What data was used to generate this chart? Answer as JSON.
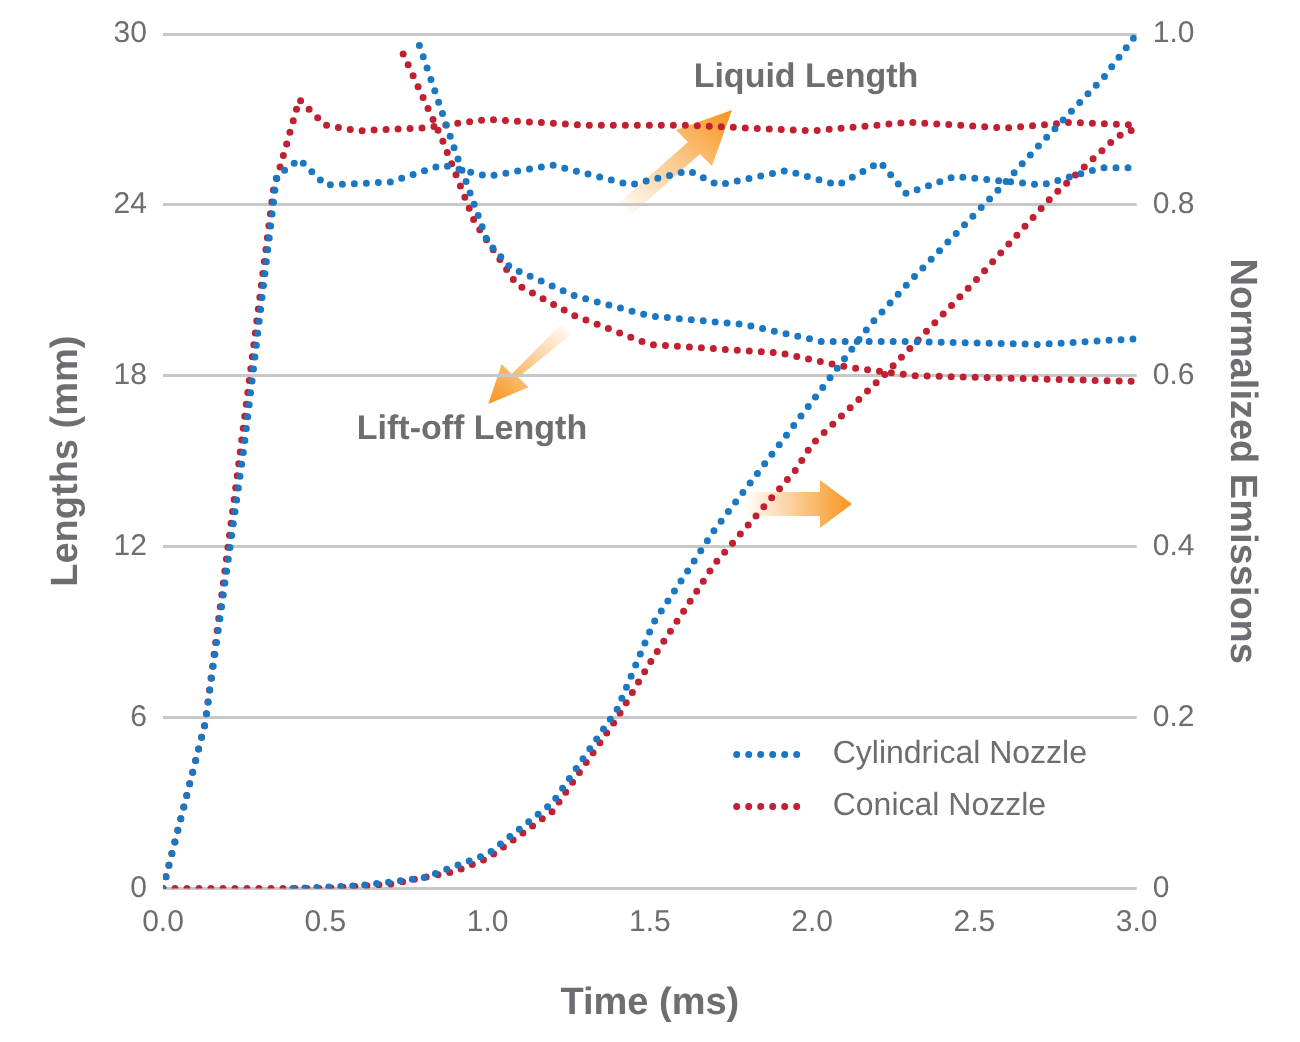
{
  "chart_data": {
    "type": "line",
    "xlabel": "Time (ms)",
    "ylabel": "Lengths (mm)",
    "y2label": "Normalized Emissions",
    "xlim": [
      0,
      3
    ],
    "xticks": [
      {
        "value": 0,
        "label": "0.0"
      },
      0.5,
      {
        "value": 1,
        "label": "1.0"
      },
      1.5,
      {
        "value": 2,
        "label": "2.0"
      },
      2.5,
      {
        "value": 3,
        "label": "3.0"
      }
    ],
    "ylim": [
      0,
      30
    ],
    "yticks": [
      0,
      6,
      12,
      18,
      24,
      30
    ],
    "y2lim": [
      0,
      1
    ],
    "y2ticks": [
      0,
      0.2,
      0.4,
      0.6,
      0.8,
      {
        "value": 1,
        "label": "1.0"
      }
    ],
    "grid": "y",
    "legend": "bottom right",
    "marker": "none",
    "line_style": "dotted",
    "annotations": [
      "Liquid Length",
      "Lift-off Length"
    ],
    "series": [
      {
        "name": "Cylindrical Nozzle",
        "color": "#1a78c2",
        "x": [
          0,
          0.13,
          0.25,
          0.35,
          0.42,
          0.5,
          0.7,
          0.86,
          1.0,
          1.2,
          1.44,
          1.62,
          1.71,
          1.92,
          2.08,
          2.21,
          2.29,
          2.44,
          2.71,
          2.89,
          3.0
        ],
        "values": [
          0,
          5.8,
          15.5,
          25,
          25.6,
          24.7,
          24.8,
          25.4,
          25,
          25.4,
          24.7,
          25.2,
          24.7,
          25.2,
          24.7,
          25.5,
          24.4,
          25,
          24.7,
          25.3,
          25.3
        ]
      },
      {
        "color": "#1a78c2",
        "x": [
          0.79,
          0.9,
          1.0,
          1.07,
          1.27,
          1.5,
          1.79,
          2.03,
          2.3,
          2.7,
          3.0
        ],
        "values": [
          29.6,
          25.9,
          22.7,
          21.8,
          20.8,
          20.1,
          19.8,
          19.2,
          19.2,
          19.1,
          19.3
        ]
      },
      {
        "color": "#1a78c2",
        "axis": "y2",
        "x": [
          0.4,
          0.6,
          0.8,
          1.0,
          1.2,
          1.4,
          1.51,
          1.7,
          1.84,
          1.9,
          2.18,
          2.3,
          2.58,
          2.7,
          2.9,
          3.0
        ],
        "values": [
          0,
          0.003,
          0.012,
          0.04,
          0.1,
          0.21,
          0.31,
          0.42,
          0.49,
          0.52,
          0.66,
          0.71,
          0.82,
          0.87,
          0.95,
          1.0
        ]
      },
      {
        "name": "Conical Nozzle",
        "color": "#c0202f",
        "x": [
          0,
          0.13,
          0.23,
          0.34,
          0.42,
          0.5,
          0.6,
          0.8,
          1.0,
          1.3,
          1.6,
          2.0,
          2.3,
          2.6,
          2.8,
          3.0
        ],
        "values": [
          0,
          5.8,
          14.6,
          24.5,
          27.7,
          26.8,
          26.6,
          26.7,
          27,
          26.8,
          26.8,
          26.6,
          26.9,
          26.7,
          26.9,
          26.8
        ]
      },
      {
        "color": "#c0202f",
        "x": [
          0.74,
          0.86,
          0.96,
          1.09,
          1.27,
          1.5,
          1.9,
          2.11,
          2.32,
          3.0
        ],
        "values": [
          29.3,
          26.3,
          23.4,
          21.2,
          20.1,
          19.1,
          18.8,
          18.3,
          18,
          17.8
        ]
      },
      {
        "color": "#c0202f",
        "axis": "y2",
        "x": [
          0,
          0.3,
          0.5,
          0.7,
          0.9,
          1.0,
          1.2,
          1.4,
          1.51,
          1.7,
          1.95,
          2.0,
          2.22,
          2.5,
          2.74,
          2.94,
          3.0
        ],
        "values": [
          0,
          0,
          0,
          0.005,
          0.02,
          0.035,
          0.09,
          0.2,
          0.27,
          0.38,
          0.49,
          0.52,
          0.6,
          0.71,
          0.81,
          0.88,
          0.89
        ]
      }
    ]
  }
}
